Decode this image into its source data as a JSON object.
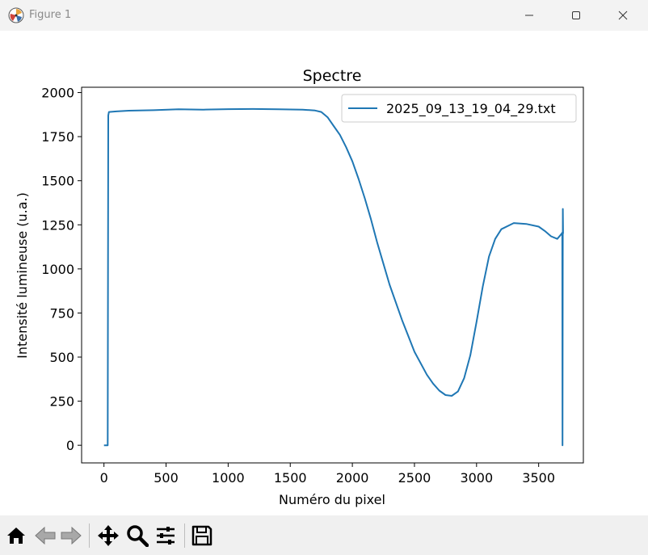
{
  "window": {
    "title": "Figure 1",
    "icons": [
      "matplotlib-logo-icon",
      "minimize-icon",
      "maximize-icon",
      "close-icon"
    ]
  },
  "toolbar": {
    "buttons": [
      "home-icon",
      "back-arrow-icon",
      "forward-arrow-icon",
      "pan-move-icon",
      "zoom-magnifier-icon",
      "configure-subplots-icon",
      "save-floppy-icon"
    ]
  },
  "chart_data": {
    "type": "line",
    "title": "Spectre",
    "xlabel": "Numéro du pixel",
    "ylabel": "Intensité lumineuse (u.a.)",
    "xlim": [
      -180,
      3860
    ],
    "ylim": [
      -100,
      2030
    ],
    "xticks": [
      0,
      500,
      1000,
      1500,
      2000,
      2500,
      3000,
      3500
    ],
    "yticks": [
      0,
      250,
      500,
      750,
      1000,
      1250,
      1500,
      1750,
      2000
    ],
    "grid": false,
    "legend_position": "top-right",
    "series": [
      {
        "name": "2025_09_13_19_04_29.txt",
        "color": "#1f77b4",
        "x": [
          0,
          30,
          35,
          40,
          100,
          200,
          400,
          600,
          800,
          1000,
          1200,
          1400,
          1600,
          1700,
          1750,
          1800,
          1850,
          1900,
          1950,
          2000,
          2050,
          2100,
          2150,
          2200,
          2250,
          2300,
          2400,
          2500,
          2600,
          2650,
          2700,
          2750,
          2800,
          2850,
          2900,
          2950,
          3000,
          3050,
          3100,
          3150,
          3200,
          3300,
          3400,
          3500,
          3550,
          3600,
          3650,
          3680,
          3690,
          3692,
          3695,
          3697
        ],
        "y": [
          0,
          0,
          1870,
          1890,
          1893,
          1897,
          1900,
          1905,
          1903,
          1906,
          1907,
          1905,
          1903,
          1898,
          1890,
          1860,
          1810,
          1760,
          1690,
          1610,
          1510,
          1400,
          1280,
          1150,
          1030,
          910,
          710,
          530,
          400,
          350,
          310,
          285,
          280,
          305,
          380,
          510,
          700,
          900,
          1070,
          1170,
          1225,
          1260,
          1255,
          1240,
          1215,
          1185,
          1170,
          1195,
          1205,
          0,
          1340,
          1200
        ]
      }
    ]
  }
}
